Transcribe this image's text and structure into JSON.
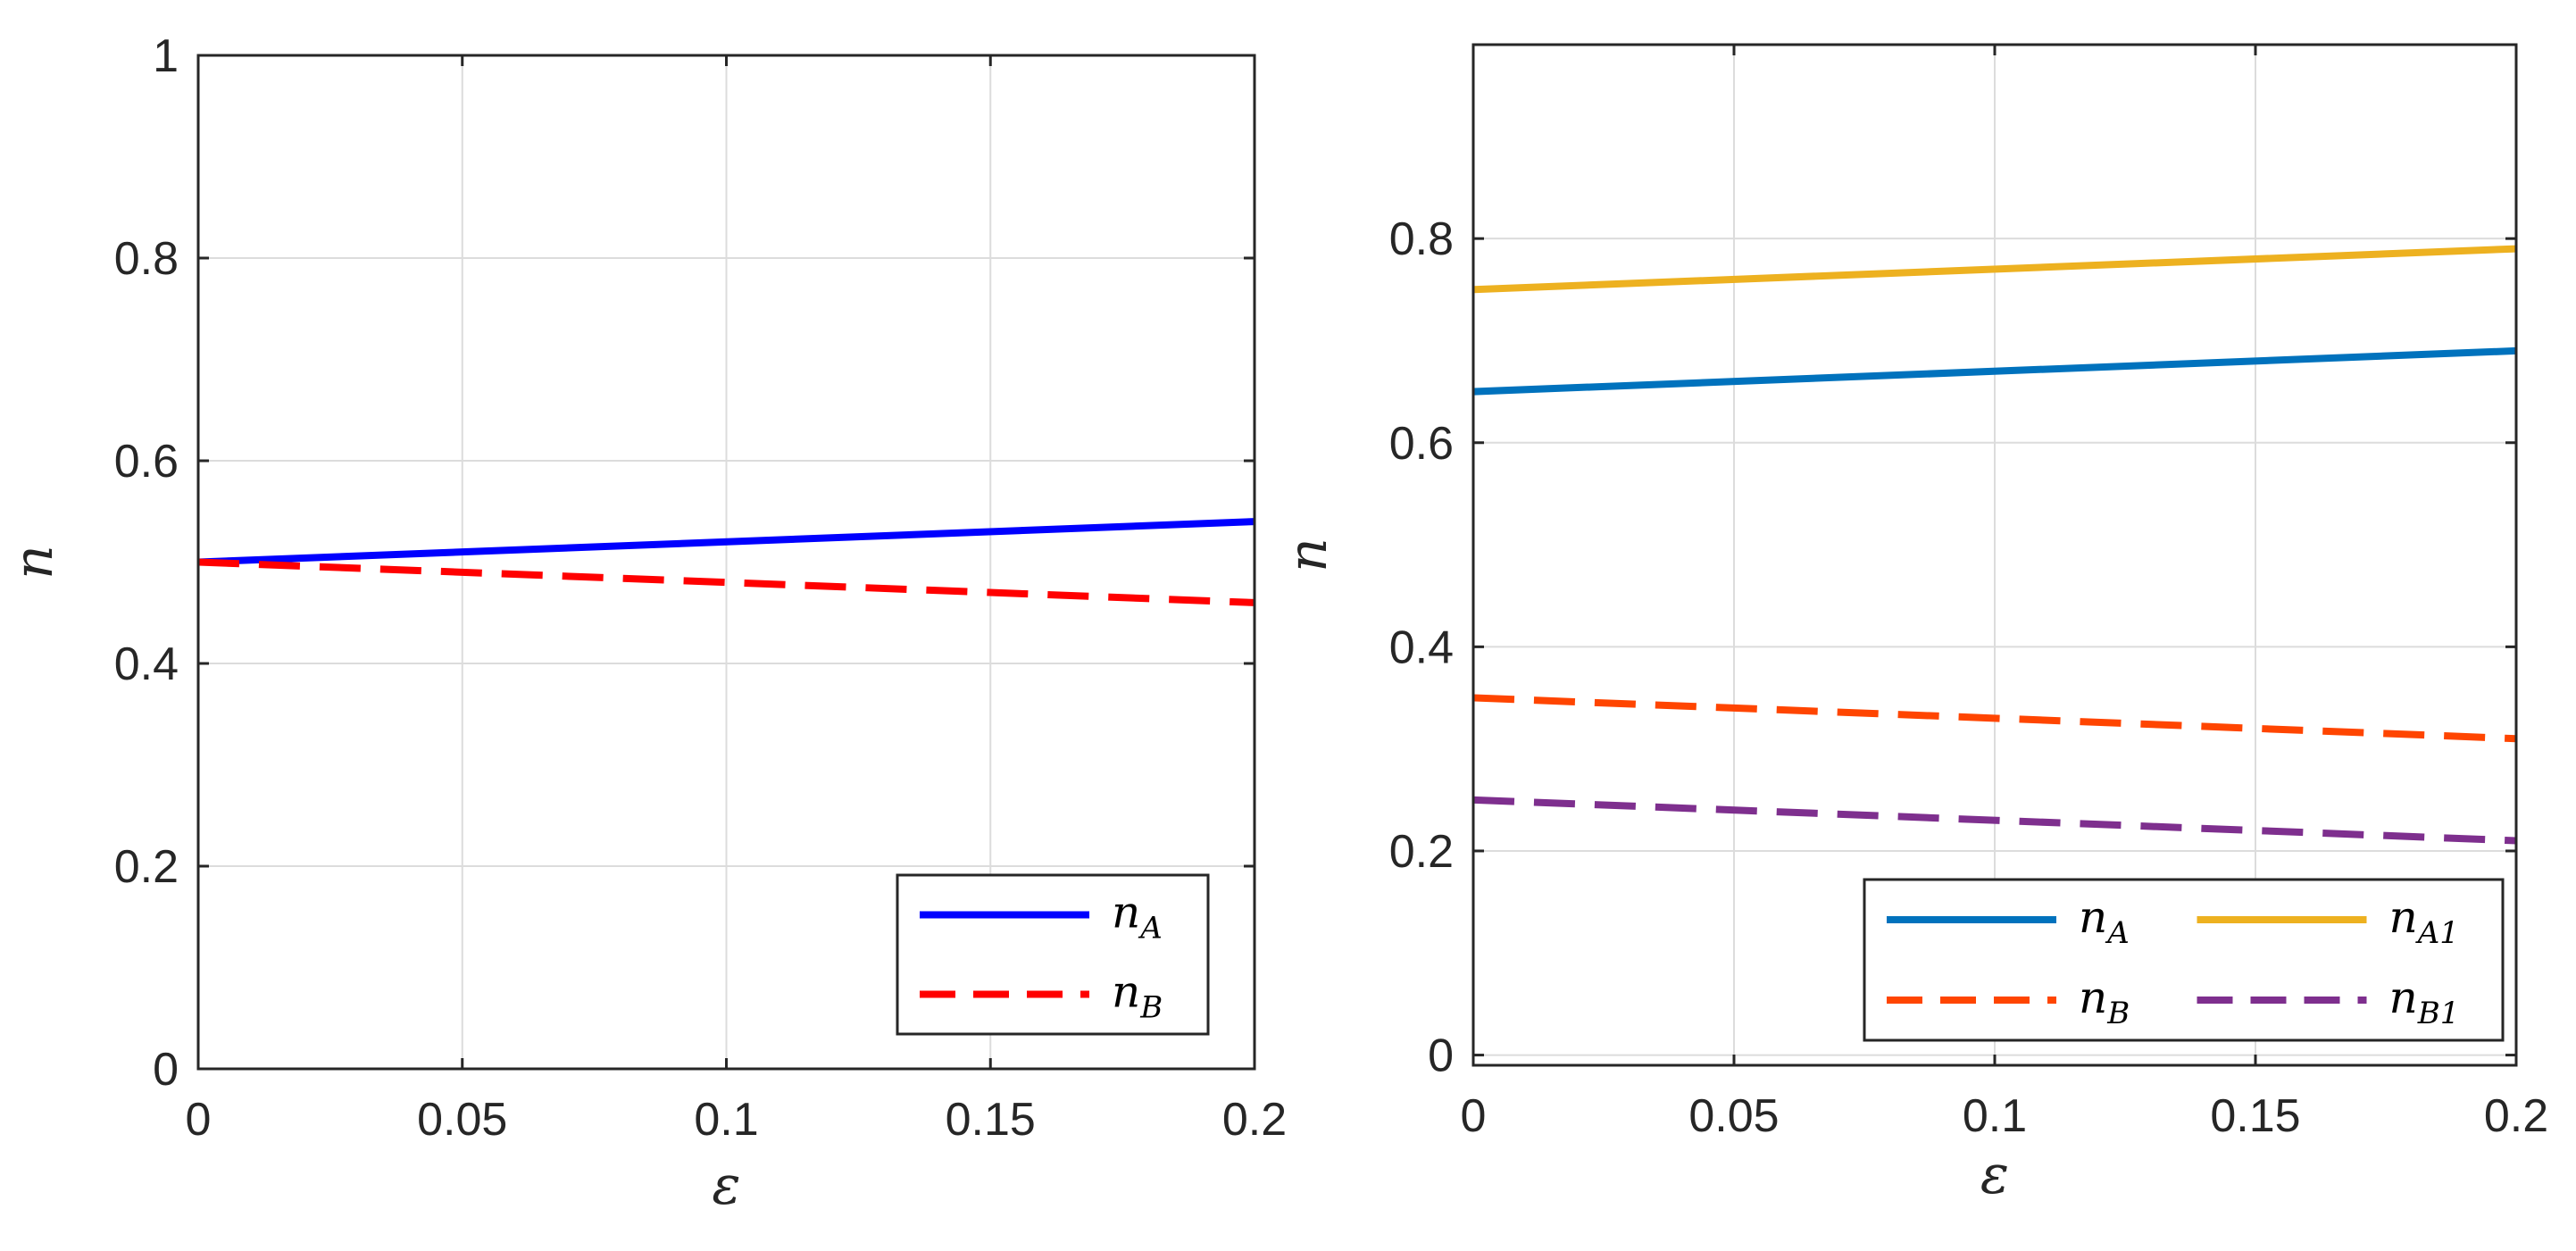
{
  "colors": {
    "left_nA": "#0000ff",
    "left_nB": "#ff0000",
    "right_nA": "#0072bd",
    "right_nA1": "#edb120",
    "right_nB": "#ff4500",
    "right_nB1": "#7e2f8e"
  },
  "chart_data": [
    {
      "type": "line",
      "xlabel": "ε",
      "ylabel": "n",
      "xlim": [
        0,
        0.2
      ],
      "ylim": [
        0,
        1
      ],
      "grid": true,
      "xticks": [
        0,
        0.05,
        0.1,
        0.15,
        0.2
      ],
      "xtick_labels": [
        "0",
        "0.05",
        "0.1",
        "0.15",
        "0.2"
      ],
      "yticks": [
        0,
        0.2,
        0.4,
        0.6,
        0.8,
        1
      ],
      "ytick_labels": [
        "0",
        "0.2",
        "0.4",
        "0.6",
        "0.8",
        "1"
      ],
      "legend_position": "bottom-right",
      "legend_columns": 1,
      "series": [
        {
          "name": "n_A",
          "label_base": "n",
          "label_sub": "A",
          "style": "solid",
          "color": "#0000ff",
          "x": [
            0,
            0.2
          ],
          "y": [
            0.5,
            0.54
          ]
        },
        {
          "name": "n_B",
          "label_base": "n",
          "label_sub": "B",
          "style": "dashed",
          "color": "#ff0000",
          "x": [
            0,
            0.2
          ],
          "y": [
            0.5,
            0.46
          ]
        }
      ]
    },
    {
      "type": "line",
      "xlabel": "ε",
      "ylabel": "n",
      "xlim": [
        0,
        0.2
      ],
      "ylim": [
        -0.01,
        0.99
      ],
      "grid": true,
      "xticks": [
        0,
        0.05,
        0.1,
        0.15,
        0.2
      ],
      "xtick_labels": [
        "0",
        "0.05",
        "0.1",
        "0.15",
        "0.2"
      ],
      "yticks": [
        0,
        0.2,
        0.4,
        0.6,
        0.8
      ],
      "ytick_labels": [
        "0",
        "0.2",
        "0.4",
        "0.6",
        "0.8"
      ],
      "legend_position": "bottom-right",
      "legend_columns": 2,
      "series": [
        {
          "name": "n_A",
          "label_base": "n",
          "label_sub": "A",
          "style": "solid",
          "color": "#0072bd",
          "x": [
            0,
            0.2
          ],
          "y": [
            0.65,
            0.69
          ]
        },
        {
          "name": "n_A1",
          "label_base": "n",
          "label_sub": "A1",
          "style": "solid",
          "color": "#edb120",
          "x": [
            0,
            0.2
          ],
          "y": [
            0.75,
            0.79
          ]
        },
        {
          "name": "n_B",
          "label_base": "n",
          "label_sub": "B",
          "style": "dashed",
          "color": "#ff4500",
          "x": [
            0,
            0.2
          ],
          "y": [
            0.35,
            0.31
          ]
        },
        {
          "name": "n_B1",
          "label_base": "n",
          "label_sub": "B1",
          "style": "dashed",
          "color": "#7e2f8e",
          "x": [
            0,
            0.2
          ],
          "y": [
            0.25,
            0.21
          ]
        }
      ]
    }
  ]
}
